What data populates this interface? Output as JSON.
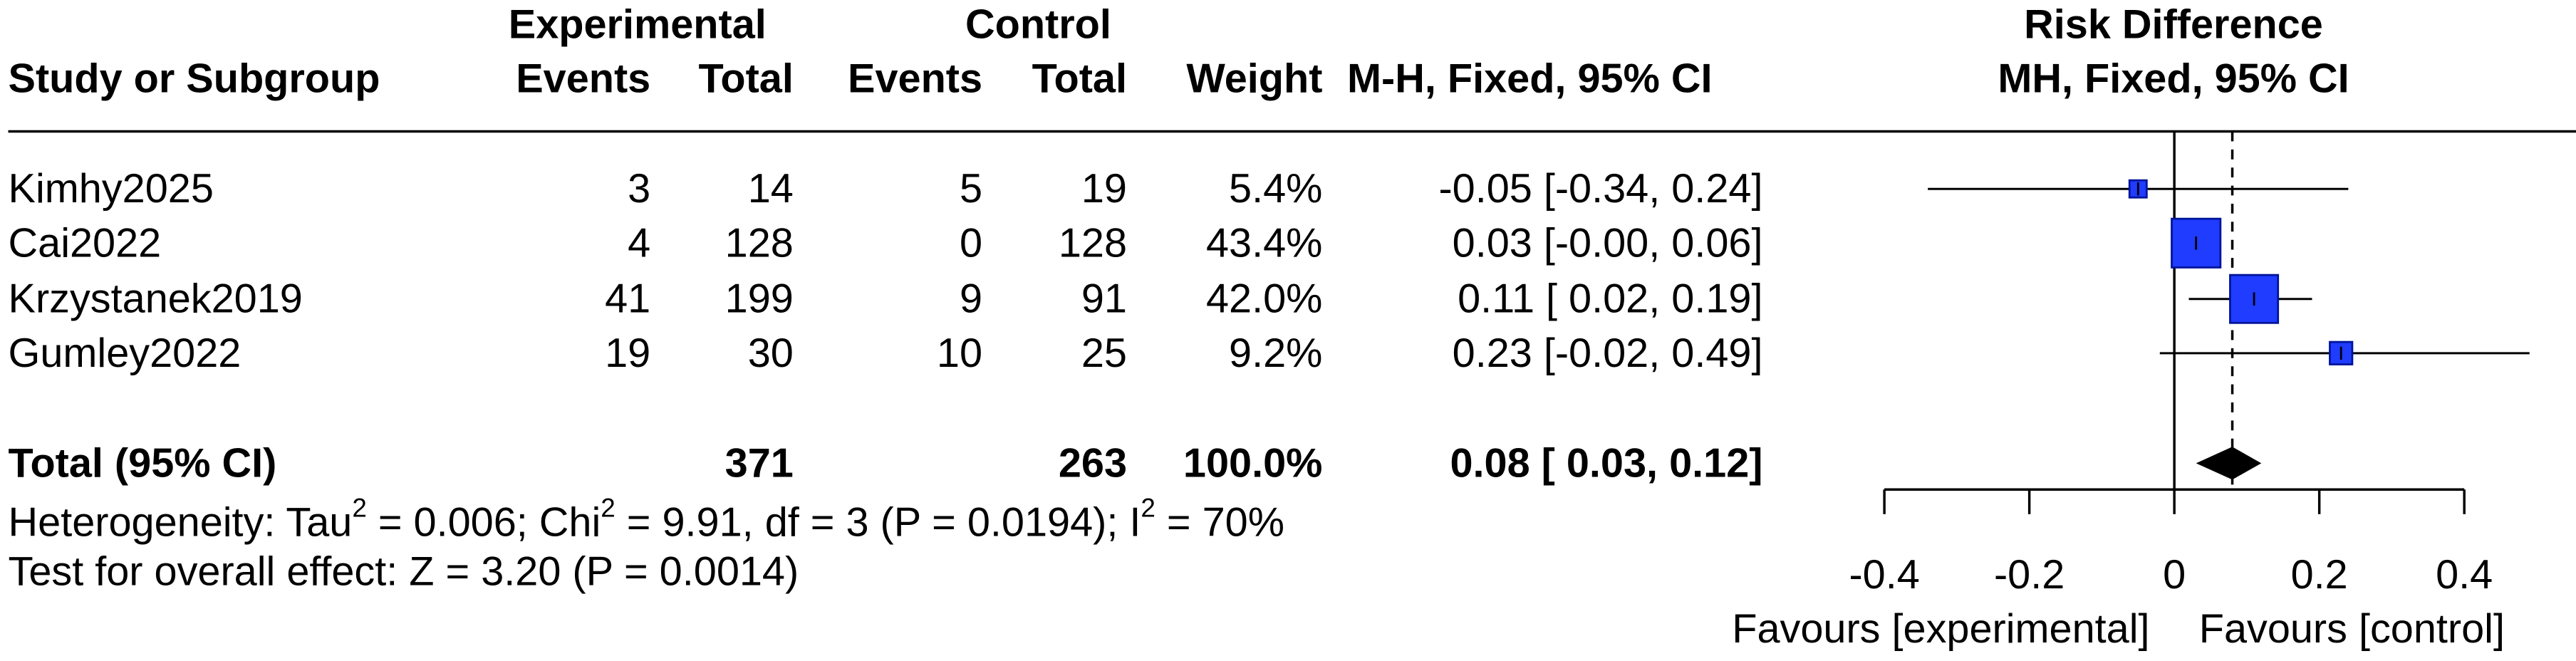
{
  "chart_data": {
    "type": "forest",
    "header": {
      "experimental": "Experimental",
      "control": "Control",
      "study": "Study or Subgroup",
      "exp_events": "Events",
      "exp_total": "Total",
      "ctrl_events": "Events",
      "ctrl_total": "Total",
      "weight": "Weight",
      "effect": "M-H, Fixed, 95% CI",
      "plot_title": "Risk Difference",
      "plot_subtitle": "MH, Fixed, 95% CI"
    },
    "studies": [
      {
        "study": "Kimhy2025",
        "exp_events": 3,
        "exp_total": 14,
        "ctrl_events": 5,
        "ctrl_total": 19,
        "weight": 5.4,
        "weight_label": "5.4%",
        "estimate": -0.05,
        "ci": [
          -0.34,
          0.24
        ],
        "effect_label": "-0.05 [-0.34, 0.24]"
      },
      {
        "study": "Cai2022",
        "exp_events": 4,
        "exp_total": 128,
        "ctrl_events": 0,
        "ctrl_total": 128,
        "weight": 43.4,
        "weight_label": "43.4%",
        "estimate": 0.03,
        "ci": [
          0,
          0.06
        ],
        "effect_label": "0.03 [-0.00, 0.06]"
      },
      {
        "study": "Krzystanek2019",
        "exp_events": 41,
        "exp_total": 199,
        "ctrl_events": 9,
        "ctrl_total": 91,
        "weight": 42.0,
        "weight_label": "42.0%",
        "estimate": 0.11,
        "ci": [
          0.02,
          0.19
        ],
        "effect_label": "0.11 [ 0.02, 0.19]"
      },
      {
        "study": "Gumley2022",
        "exp_events": 19,
        "exp_total": 30,
        "ctrl_events": 10,
        "ctrl_total": 25,
        "weight": 9.2,
        "weight_label": "9.2%",
        "estimate": 0.23,
        "ci": [
          -0.02,
          0.49
        ],
        "effect_label": "0.23 [-0.02, 0.49]"
      }
    ],
    "total": {
      "study": "Total (95% CI)",
      "exp_total": 371,
      "ctrl_total": 263,
      "weight": 100,
      "weight_label": "100.0%",
      "estimate": 0.08,
      "ci": [
        0.03,
        0.12
      ],
      "effect_label": "0.08 [ 0.03, 0.12]"
    },
    "heterogeneity": [
      "Heterogeneity: Tau",
      "2",
      " = 0.006; Chi",
      "2",
      " = 9.91, df = 3 (P = 0.0194); I",
      "2",
      " = 70%"
    ],
    "overall_effect": "Test for overall effect: Z = 3.20 (P = 0.0014)",
    "xlim": [
      -0.4,
      0.4
    ],
    "xticks": [
      -0.4,
      -0.2,
      0,
      0.2,
      0.4
    ],
    "xlabel_left": "Favours [experimental]",
    "xlabel_right": "Favours [control]",
    "square_color": "#1f3cff",
    "square_edge": "#00149a"
  }
}
